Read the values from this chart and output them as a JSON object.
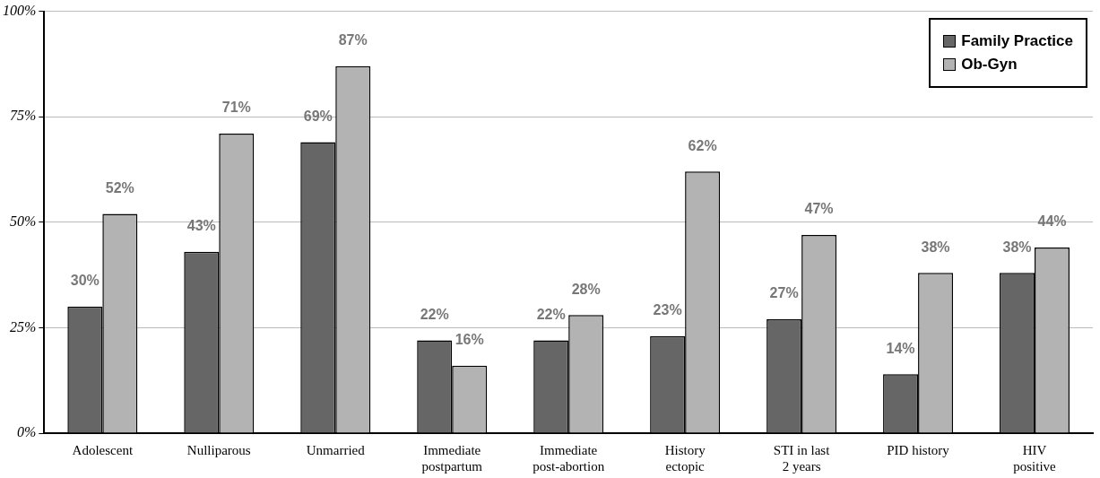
{
  "chart_data": {
    "type": "bar",
    "categories": [
      "Adolescent",
      "Nulliparous",
      "Unmarried",
      "Immediate postpartum",
      "Immediate post-abortion",
      "History ectopic",
      "STI in last 2 years",
      "PID history",
      "HIV positive"
    ],
    "series": [
      {
        "name": "Family Practice",
        "color": "#666666",
        "values": [
          30,
          43,
          69,
          22,
          22,
          23,
          27,
          14,
          38
        ],
        "value_labels": [
          "30%",
          "43%",
          "69%",
          "22%",
          "22%",
          "23%",
          "27%",
          "14%",
          "38%"
        ]
      },
      {
        "name": "Ob-Gyn",
        "color": "#b3b3b3",
        "values": [
          52,
          71,
          87,
          16,
          28,
          62,
          47,
          38,
          44
        ],
        "value_labels": [
          "52%",
          "71%",
          "87%",
          "16%",
          "28%",
          "62%",
          "47%",
          "38%",
          "44%"
        ]
      }
    ],
    "ylim": [
      0,
      100
    ],
    "yticks": [
      {
        "value": 0,
        "label": "0%"
      },
      {
        "value": 25,
        "label": "25%"
      },
      {
        "value": 50,
        "label": "50%"
      },
      {
        "value": 75,
        "label": "75%"
      },
      {
        "value": 100,
        "label": "100%"
      }
    ],
    "grid": "y",
    "legend": "top right"
  }
}
